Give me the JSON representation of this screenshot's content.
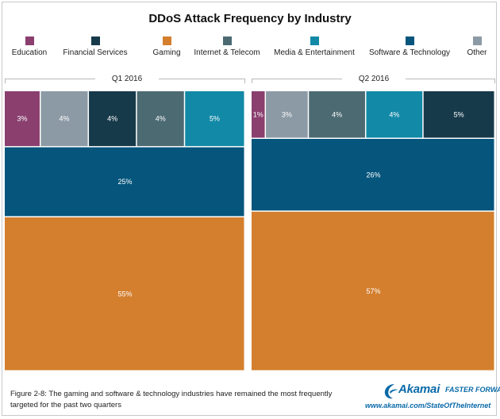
{
  "chart_data": {
    "type": "mosaic",
    "title": "DDoS Attack Frequency by Industry",
    "legend": [
      {
        "name": "Education",
        "color": "#8a3f6f"
      },
      {
        "name": "Financial Services",
        "color": "#173a4a"
      },
      {
        "name": "Gaming",
        "color": "#d47f2e"
      },
      {
        "name": "Internet & Telecom",
        "color": "#4c6a72"
      },
      {
        "name": "Media & Entertainment",
        "color": "#1289a7"
      },
      {
        "name": "Software & Technology",
        "color": "#05557c"
      },
      {
        "name": "Other",
        "color": "#8c9aa5"
      }
    ],
    "panels": [
      {
        "label": "Q1 2016",
        "top_row": [
          {
            "industry": "Education",
            "label": "3%",
            "value": 3
          },
          {
            "industry": "Other",
            "label": "4%",
            "value": 4
          },
          {
            "industry": "Financial Services",
            "label": "4%",
            "value": 4
          },
          {
            "industry": "Internet & Telecom",
            "label": "4%",
            "value": 4
          },
          {
            "industry": "Media & Entertainment",
            "label": "5%",
            "value": 5
          }
        ],
        "rows": [
          {
            "industry": "Software & Technology",
            "label": "25%",
            "value": 25
          },
          {
            "industry": "Gaming",
            "label": "55%",
            "value": 55
          }
        ]
      },
      {
        "label": "Q2 2016",
        "top_row": [
          {
            "industry": "Education",
            "label": "1%",
            "value": 1
          },
          {
            "industry": "Other",
            "label": "3%",
            "value": 3
          },
          {
            "industry": "Internet & Telecom",
            "label": "4%",
            "value": 4
          },
          {
            "industry": "Media & Entertainment",
            "label": "4%",
            "value": 4
          },
          {
            "industry": "Financial Services",
            "label": "5%",
            "value": 5
          }
        ],
        "rows": [
          {
            "industry": "Software & Technology",
            "label": "26%",
            "value": 26
          },
          {
            "industry": "Gaming",
            "label": "57%",
            "value": 57
          }
        ]
      }
    ]
  },
  "caption": "Figure 2-8: The gaming and software & technology industries have remained the most frequently targeted for the past two quarters",
  "logo": {
    "brand": "Akamai",
    "tagline": "FASTER FORWARD",
    "url": "www.akamai.com/StateOfTheInternet",
    "color": "#0a6aa8"
  }
}
